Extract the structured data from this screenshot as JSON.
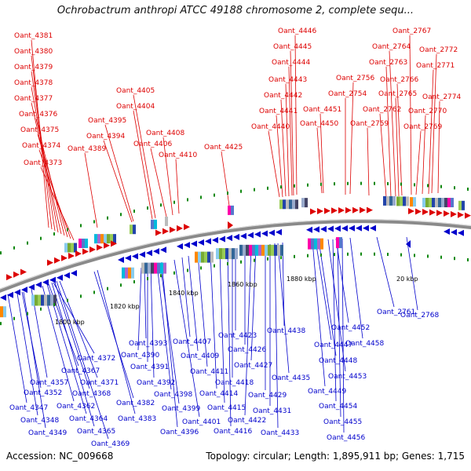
{
  "title": "Ochrobactrum anthropi ATCC 49188 chromosome 2, complete sequ...",
  "footer": {
    "accession": "Accession: NC_009668",
    "summary": "Topology: circular; Length: 1,895,911 bp; Genes: 1,715"
  },
  "colors": {
    "forward": "#dd0000",
    "reverse": "#0000cc",
    "backbone": "#888888",
    "tick": "#118811"
  },
  "scale": [
    "1800 kbp",
    "1820 kbp",
    "1840 kbp",
    "1860 kbp",
    "1880 kbp",
    "20 kbp"
  ],
  "top_labels": [
    "Oant_4381",
    "Oant_4380",
    "Oant_4379",
    "Oant_4378",
    "Oant_4377",
    "Oant_4376",
    "Oant_4375",
    "Oant_4374",
    "Oant_4373",
    "Oant_4405",
    "Oant_4404",
    "Oant_4395",
    "Oant_4394",
    "Oant_4389",
    "Oant_4408",
    "Oant_4406",
    "Oant_4410",
    "Oant_4425",
    "Oant_4446",
    "Oant_4445",
    "Oant_4444",
    "Oant_4443",
    "Oant_4442",
    "Oant_4441",
    "Oant_4440",
    "Oant_4451",
    "Oant_4450",
    "Oant_2767",
    "Oant_2764",
    "Oant_2772",
    "Oant_2763",
    "Oant_2771",
    "Oant_2756",
    "Oant_2766",
    "Oant_2754",
    "Oant_2765",
    "Oant_2774",
    "Oant_2762",
    "Oant_2770",
    "Oant_2759",
    "Oant_2769"
  ],
  "bottom_labels": [
    "Oant_4372",
    "Oant_4367",
    "Oant_4357",
    "Oant_4371",
    "Oant_4352",
    "Oant_4368",
    "Oant_4347",
    "Oant_4362",
    "Oant_4348",
    "Oant_4364",
    "Oant_4349",
    "Oant_4365",
    "Oant_4369",
    "Oant_4382",
    "Oant_4383",
    "Oant_4393",
    "Oant_4390",
    "Oant_4391",
    "Oant_4392",
    "Oant_4398",
    "Oant_4399",
    "Oant_4396",
    "Oant_4401",
    "Oant_4407",
    "Oant_4409",
    "Oant_4411",
    "Oant_4414",
    "Oant_4415",
    "Oant_4416",
    "Oant_4423",
    "Oant_4426",
    "Oant_4418",
    "Oant_4422",
    "Oant_4427",
    "Oant_4429",
    "Oant_4431",
    "Oant_4433",
    "Oant_4438",
    "Oant_4435",
    "Oant_4452",
    "Oant_4447",
    "Oant_4448",
    "Oant_4453",
    "Oant_4449",
    "Oant_4454",
    "Oant_4455",
    "Oant_4456",
    "Oant_4458",
    "Oant_2761",
    "Oant_2768"
  ]
}
